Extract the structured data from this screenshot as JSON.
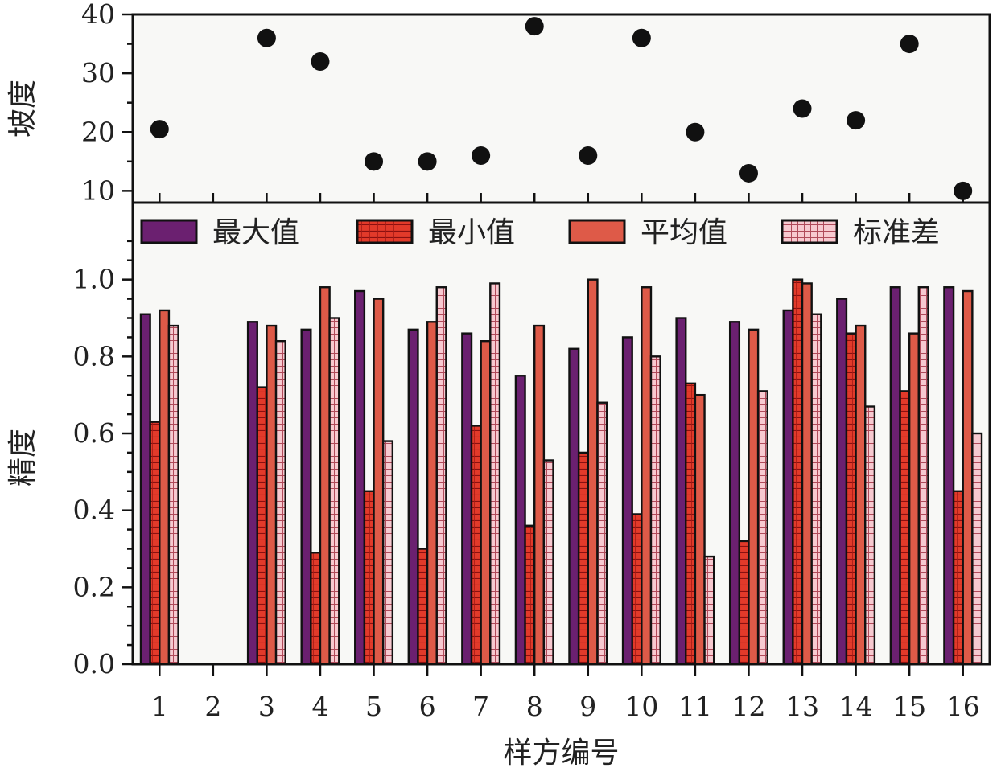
{
  "chart_data": [
    {
      "type": "scatter",
      "ylabel": "坡度",
      "xlabel": "",
      "ylim": [
        8,
        40
      ],
      "yticks": [
        10,
        20,
        30,
        40
      ],
      "categories": [
        "1",
        "2",
        "3",
        "4",
        "5",
        "6",
        "7",
        "8",
        "9",
        "10",
        "11",
        "12",
        "13",
        "14",
        "15",
        "16"
      ],
      "values": [
        20.5,
        null,
        36,
        32,
        15,
        15,
        16,
        38,
        16,
        36,
        20,
        13,
        24,
        22,
        35,
        10
      ],
      "marker_color": "#111111"
    },
    {
      "type": "bar",
      "ylabel": "精度",
      "xlabel": "样方编号",
      "ylim": [
        0,
        1.2
      ],
      "yticks": [
        "0.0",
        "0.2",
        "0.4",
        "0.6",
        "0.8",
        "1.0"
      ],
      "categories": [
        "1",
        "2",
        "3",
        "4",
        "5",
        "6",
        "7",
        "8",
        "9",
        "10",
        "11",
        "12",
        "13",
        "14",
        "15",
        "16"
      ],
      "legend_position": "top",
      "series": [
        {
          "name": "最大值",
          "color": "#6b2070",
          "values": [
            0.91,
            0,
            0.89,
            0.87,
            0.97,
            0.87,
            0.86,
            0.75,
            0.82,
            0.85,
            0.9,
            0.89,
            0.92,
            0.95,
            0.98,
            0.98
          ]
        },
        {
          "name": "最小值",
          "color": "#e23a2a",
          "values": [
            0.63,
            0,
            0.72,
            0.29,
            0.45,
            0.3,
            0.62,
            0.36,
            0.55,
            0.39,
            0.73,
            0.32,
            1.0,
            0.86,
            0.71,
            0.45
          ]
        },
        {
          "name": "平均值",
          "color": "#de5a48",
          "values": [
            0.92,
            0,
            0.88,
            0.98,
            0.95,
            0.89,
            0.84,
            0.88,
            1.0,
            0.98,
            0.7,
            0.87,
            0.99,
            0.88,
            0.86,
            0.97
          ]
        },
        {
          "name": "标准差",
          "color": "#f4b9c3",
          "values": [
            0.88,
            0,
            0.84,
            0.9,
            0.58,
            0.98,
            0.99,
            0.53,
            0.68,
            0.8,
            0.28,
            0.71,
            0.91,
            0.67,
            0.98,
            0.6
          ]
        }
      ]
    }
  ]
}
